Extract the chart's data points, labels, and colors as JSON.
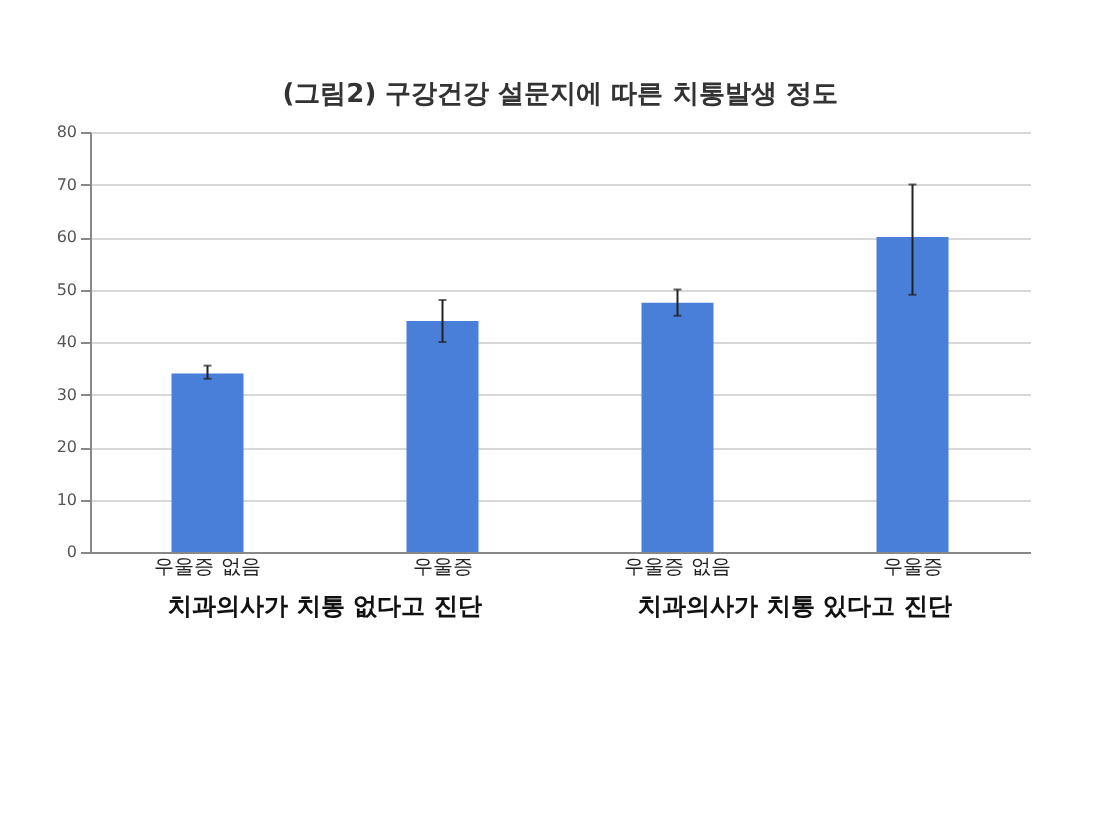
{
  "chart_data": {
    "type": "bar",
    "title": "(그림2) 구강건강 설문지에 따른 치통발생 정도",
    "categories": [
      "우울증 없음",
      "우울증",
      "우울증 없음",
      "우울증"
    ],
    "values": [
      34,
      44,
      47.5,
      60
    ],
    "errors": [
      [
        33,
        35.5
      ],
      [
        40,
        48
      ],
      [
        45,
        50
      ],
      [
        49,
        70
      ]
    ],
    "color": "#4a7fd9",
    "ylim": [
      0,
      80
    ],
    "yticks": [
      0,
      10,
      20,
      30,
      40,
      50,
      60,
      70,
      80
    ],
    "grid": "y",
    "annotations": [
      "치과의사가 치통 없다고 진단",
      "치과의사가 치통 있다고 진단"
    ]
  }
}
